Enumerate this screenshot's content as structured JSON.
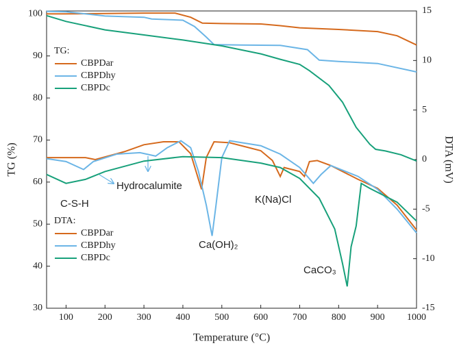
{
  "chart_data": {
    "type": "line",
    "x_label": "Temperature (°C)",
    "y_label": "TG (%)",
    "y2_label": "DTA (mV)",
    "legend_titles": [
      "TG:",
      "DTA:"
    ],
    "annotations": [
      "Hydrocalumite",
      "C-S-H",
      "Ca(OH)₂",
      "K(Na)Cl",
      "CaCO₃"
    ],
    "xlim": [
      50,
      1000
    ],
    "xticks": [
      100,
      200,
      300,
      400,
      500,
      600,
      700,
      800,
      900,
      1000
    ],
    "ylim": [
      30,
      100.7
    ],
    "yticks": [
      30,
      40,
      50,
      60,
      70,
      80,
      90,
      100
    ],
    "y2lim": [
      -15,
      15
    ],
    "y2ticks": [
      -15,
      -10,
      -5,
      0,
      5,
      10,
      15
    ],
    "series": [
      {
        "name": "CBPDar",
        "color": "#d5691c",
        "axis": "y",
        "x": [
          50,
          100,
          200,
          300,
          380,
          420,
          450,
          500,
          600,
          650,
          700,
          800,
          900,
          950,
          1000
        ],
        "values": [
          100,
          100,
          100.1,
          100.2,
          100.2,
          99.2,
          97.8,
          97.7,
          97.6,
          97.2,
          96.7,
          96.3,
          95.8,
          94.8,
          92.6
        ]
      },
      {
        "name": "CBPDhy",
        "color": "#6bb5e6",
        "axis": "y",
        "x": [
          50,
          100,
          150,
          200,
          300,
          320,
          400,
          430,
          460,
          480,
          550,
          650,
          720,
          750,
          800,
          900,
          1000
        ],
        "values": [
          100.6,
          100.5,
          100,
          99.5,
          99.2,
          98.8,
          98.5,
          97,
          94.5,
          92.7,
          92.6,
          92.5,
          91.5,
          89,
          88.7,
          88.2,
          86.2
        ]
      },
      {
        "name": "CBPDc",
        "color": "#17a07a",
        "axis": "y",
        "x": [
          50,
          100,
          200,
          300,
          400,
          500,
          600,
          650,
          700,
          725,
          775,
          810,
          845,
          880,
          895,
          920,
          960,
          1000
        ],
        "values": [
          99.6,
          98.2,
          96.2,
          95,
          93.8,
          92.4,
          90.5,
          89.2,
          88,
          86.5,
          83,
          79,
          73,
          69,
          67.8,
          67.4,
          66.5,
          65
        ]
      },
      {
        "name": "CBPDar",
        "color": "#d5691c",
        "axis": "y2",
        "x": [
          50,
          150,
          175,
          250,
          300,
          350,
          390,
          420,
          440,
          448,
          460,
          480,
          520,
          600,
          630,
          650,
          660,
          700,
          712,
          725,
          745,
          780,
          850,
          900,
          950,
          1000
        ],
        "values": [
          0.2,
          0.2,
          0,
          0.8,
          1.5,
          1.8,
          1.8,
          0.6,
          -2,
          -3,
          0.2,
          1.8,
          1.7,
          0.9,
          -0.1,
          -1.7,
          -0.8,
          -1.2,
          -1.7,
          -0.2,
          -0.1,
          -0.6,
          -2,
          -2.9,
          -4.6,
          -7.1
        ]
      },
      {
        "name": "CBPDhy",
        "color": "#6bb5e6",
        "axis": "y2",
        "x": [
          50,
          100,
          145,
          170,
          230,
          290,
          330,
          360,
          395,
          420,
          440,
          460,
          475,
          485,
          500,
          520,
          600,
          650,
          700,
          735,
          755,
          780,
          850,
          900,
          950,
          1000
        ],
        "values": [
          0.1,
          -0.2,
          -1,
          -0.2,
          0.55,
          0.7,
          0.35,
          1.2,
          1.9,
          1.2,
          -1.2,
          -4.6,
          -7.7,
          -4.6,
          0.2,
          1.9,
          1.4,
          0.55,
          -0.8,
          -2.4,
          -1.5,
          -0.6,
          -1.7,
          -3,
          -5,
          -7.4
        ]
      },
      {
        "name": "CBPDc",
        "color": "#17a07a",
        "axis": "y2",
        "x": [
          50,
          100,
          150,
          200,
          300,
          400,
          500,
          600,
          650,
          700,
          750,
          790,
          810,
          822,
          832,
          845,
          858,
          880,
          950,
          1000
        ],
        "values": [
          -1.5,
          -2.4,
          -2,
          -1.2,
          -0.15,
          0.3,
          0.2,
          -0.35,
          -0.8,
          -1.9,
          -3.9,
          -7,
          -10.5,
          -12.8,
          -8.8,
          -6.7,
          -2.4,
          -2.9,
          -4.3,
          -6.2
        ]
      }
    ]
  }
}
